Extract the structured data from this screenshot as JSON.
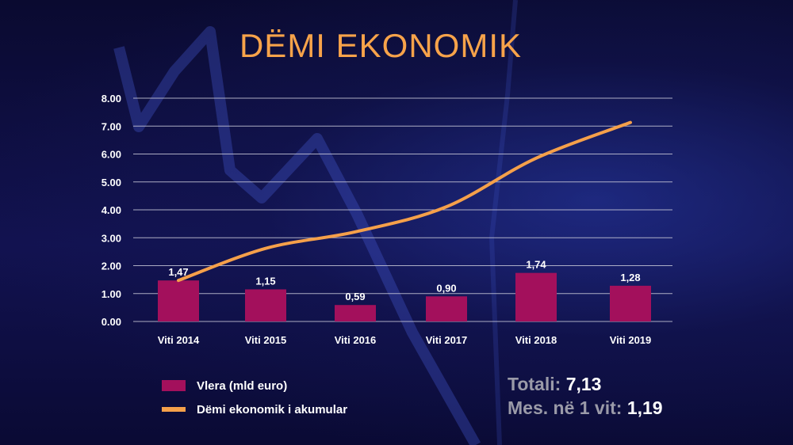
{
  "chart_data": {
    "type": "bar",
    "title": "DËMI EKONOMIK",
    "categories": [
      "Viti 2014",
      "Viti 2015",
      "Viti 2016",
      "Viti 2017",
      "Viti 2018",
      "Viti 2019"
    ],
    "series": [
      {
        "name": "Vlera (mld euro)",
        "type": "bar",
        "values": [
          1.47,
          1.15,
          0.59,
          0.9,
          1.74,
          1.28
        ],
        "labels": [
          "1,47",
          "1,15",
          "0,59",
          "0,90",
          "1,74",
          "1,28"
        ],
        "color": "#a3105c"
      },
      {
        "name": "Dëmi ekonomik i akumular",
        "type": "line",
        "values": [
          1.47,
          2.62,
          3.21,
          4.11,
          5.85,
          7.13
        ],
        "color": "#f5a04a"
      }
    ],
    "y_ticks": [
      "0.00",
      "1.00",
      "2.00",
      "3.00",
      "4.00",
      "5.00",
      "6.00",
      "7.00",
      "8.00"
    ],
    "ylim": [
      0,
      8
    ],
    "grid": true,
    "legend_position": "bottom-left",
    "xlabel": "",
    "ylabel": ""
  },
  "summary": {
    "total_label": "Totali:",
    "total_value": "7,13",
    "avg_label": "Mes. në 1 vit:",
    "avg_value": "1,19"
  },
  "colors": {
    "title": "#f7a34a",
    "background": "#0b0b3a",
    "bar": "#a3105c",
    "line": "#f5a04a",
    "grid": "#c8c8d8"
  }
}
